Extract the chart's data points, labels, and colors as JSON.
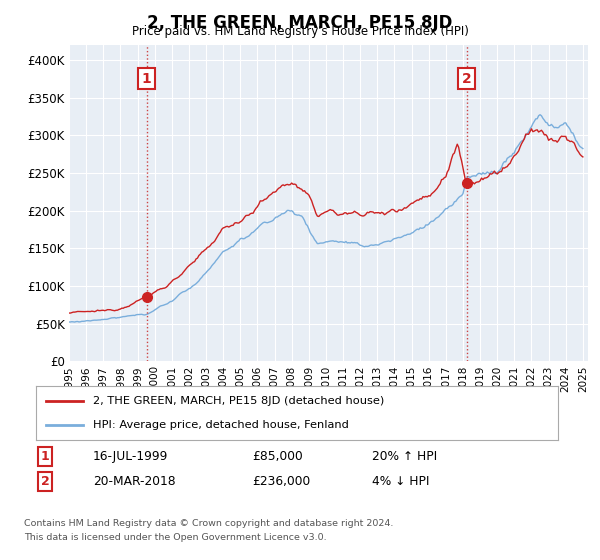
{
  "title": "2, THE GREEN, MARCH, PE15 8JD",
  "subtitle": "Price paid vs. HM Land Registry's House Price Index (HPI)",
  "ylim": [
    0,
    420000
  ],
  "yticks": [
    0,
    50000,
    100000,
    150000,
    200000,
    250000,
    300000,
    350000,
    400000
  ],
  "ytick_labels": [
    "£0",
    "£50K",
    "£100K",
    "£150K",
    "£200K",
    "£250K",
    "£300K",
    "£350K",
    "£400K"
  ],
  "sale1_year": 1999.54,
  "sale1_price": 85000,
  "sale1_date_str": "16-JUL-1999",
  "sale1_hpi": "20% ↑ HPI",
  "sale2_year": 2018.21,
  "sale2_price": 236000,
  "sale2_date_str": "20-MAR-2018",
  "sale2_hpi": "4% ↓ HPI",
  "legend_red": "2, THE GREEN, MARCH, PE15 8JD (detached house)",
  "legend_blue": "HPI: Average price, detached house, Fenland",
  "footnote1": "Contains HM Land Registry data © Crown copyright and database right 2024.",
  "footnote2": "This data is licensed under the Open Government Licence v3.0.",
  "red_color": "#cc2222",
  "blue_color": "#7aaedc",
  "plot_bg": "#e8eef5",
  "grid_color": "#ffffff",
  "dashed_color": "#cc4444"
}
